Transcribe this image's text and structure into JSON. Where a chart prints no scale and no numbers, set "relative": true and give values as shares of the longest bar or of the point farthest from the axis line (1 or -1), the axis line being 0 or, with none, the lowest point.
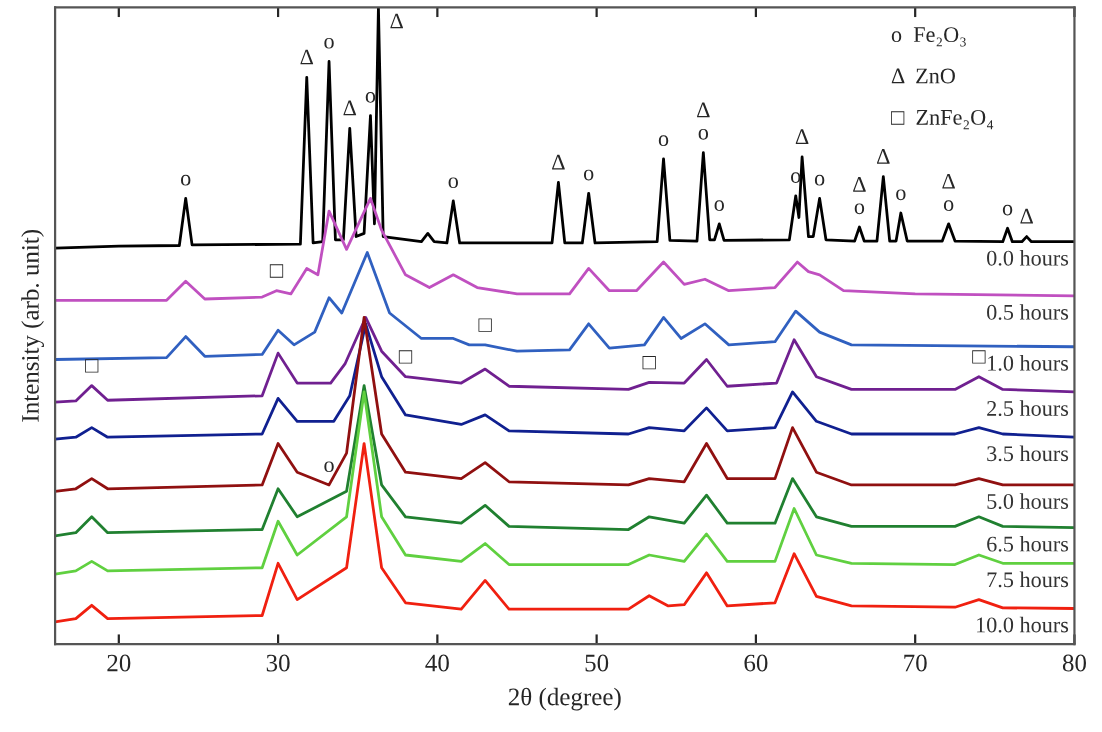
{
  "chart_data": {
    "type": "line",
    "relative": true,
    "xlabel": "2θ (degree)",
    "ylabel": "Intensity (arb. unit)",
    "xlim": [
      16,
      80
    ],
    "xticks": [
      20,
      30,
      40,
      50,
      60,
      70,
      80
    ],
    "tick_labels": "x",
    "grid": false,
    "legend": false,
    "marker": "none",
    "line_style": "solid",
    "series": [
      {
        "name": "0.0 hours",
        "color": "#000000",
        "x": [
          16,
          20,
          23.8,
          24.2,
          24.6,
          31.4,
          31.8,
          32.2,
          32.8,
          33.2,
          33.6,
          34.1,
          34.5,
          34.9,
          35.4,
          35.8,
          36.05,
          36.3,
          36.6,
          39.0,
          39.4,
          39.8,
          40.6,
          41.0,
          41.4,
          47.2,
          47.6,
          48.0,
          49.1,
          49.5,
          49.9,
          53.8,
          54.2,
          54.6,
          56.3,
          56.7,
          57.1,
          57.4,
          57.7,
          58.0,
          62.1,
          62.5,
          62.7,
          62.9,
          63.3,
          63.6,
          64.0,
          64.4,
          66.2,
          66.5,
          66.8,
          67.6,
          68.0,
          68.4,
          68.8,
          69.1,
          69.5,
          71.7,
          72.1,
          72.5,
          75.5,
          75.8,
          76.1,
          76.7,
          77.0,
          77.3,
          80
        ],
        "values": [
          0.622,
          0.625,
          0.626,
          0.7,
          0.627,
          0.628,
          0.89,
          0.63,
          0.632,
          0.915,
          0.635,
          0.635,
          0.81,
          0.64,
          0.645,
          0.83,
          0.66,
          1.0,
          0.64,
          0.632,
          0.645,
          0.632,
          0.63,
          0.696,
          0.63,
          0.63,
          0.725,
          0.63,
          0.63,
          0.708,
          0.63,
          0.632,
          0.762,
          0.634,
          0.633,
          0.772,
          0.635,
          0.635,
          0.66,
          0.634,
          0.635,
          0.704,
          0.67,
          0.765,
          0.64,
          0.64,
          0.7,
          0.635,
          0.633,
          0.655,
          0.633,
          0.633,
          0.734,
          0.633,
          0.633,
          0.677,
          0.633,
          0.633,
          0.66,
          0.633,
          0.632,
          0.653,
          0.632,
          0.632,
          0.64,
          0.632,
          0.632
        ]
      },
      {
        "name": "0.5 hours",
        "color": "#c050c0",
        "x": [
          16,
          23,
          24.2,
          25.4,
          29,
          29.9,
          30.8,
          31.8,
          32.5,
          33.2,
          34.3,
          35.8,
          36.5,
          38,
          39.5,
          41.0,
          42.5,
          45,
          48.3,
          49.5,
          50.8,
          52.5,
          54.2,
          55.5,
          56.8,
          58.3,
          61.2,
          62.6,
          63.3,
          64.0,
          65.5,
          70,
          80
        ],
        "values": [
          0.54,
          0.54,
          0.57,
          0.542,
          0.545,
          0.555,
          0.55,
          0.59,
          0.58,
          0.68,
          0.62,
          0.7,
          0.65,
          0.58,
          0.56,
          0.58,
          0.56,
          0.55,
          0.55,
          0.59,
          0.555,
          0.555,
          0.6,
          0.565,
          0.573,
          0.555,
          0.56,
          0.6,
          0.585,
          0.58,
          0.555,
          0.55,
          0.547
        ]
      },
      {
        "name": "1.0 hours",
        "color": "#3060c0",
        "x": [
          16,
          23,
          24.2,
          25.4,
          29,
          30.0,
          31,
          32.3,
          33.2,
          34,
          35.6,
          37,
          39,
          41.0,
          42,
          43,
          45,
          48.3,
          49.5,
          50.8,
          53,
          54.2,
          55.3,
          56.8,
          58.3,
          61.2,
          62.5,
          64,
          66,
          80
        ],
        "values": [
          0.447,
          0.45,
          0.483,
          0.452,
          0.455,
          0.493,
          0.47,
          0.49,
          0.544,
          0.52,
          0.615,
          0.52,
          0.48,
          0.48,
          0.47,
          0.47,
          0.46,
          0.462,
          0.503,
          0.465,
          0.47,
          0.513,
          0.48,
          0.503,
          0.47,
          0.475,
          0.523,
          0.49,
          0.47,
          0.467
        ]
      },
      {
        "name": "2.5 hours",
        "color": "#702090",
        "x": [
          16,
          17.3,
          18.3,
          19.3,
          29,
          30.0,
          31.2,
          33.3,
          34.2,
          35.5,
          36.5,
          38,
          41.5,
          43.0,
          44.5,
          52,
          53.3,
          55.5,
          56.9,
          58.2,
          61.3,
          62.4,
          63.8,
          66,
          72.5,
          74,
          75.5,
          80
        ],
        "values": [
          0.38,
          0.382,
          0.406,
          0.383,
          0.39,
          0.457,
          0.41,
          0.41,
          0.44,
          0.513,
          0.46,
          0.42,
          0.41,
          0.432,
          0.405,
          0.4,
          0.411,
          0.41,
          0.447,
          0.405,
          0.41,
          0.478,
          0.42,
          0.4,
          0.4,
          0.42,
          0.4,
          0.396
        ]
      },
      {
        "name": "3.5 hours",
        "color": "#102090",
        "x": [
          16,
          17.3,
          18.3,
          19.3,
          29,
          30.0,
          31.2,
          33.5,
          34.5,
          35.5,
          36.5,
          38,
          41.5,
          43.0,
          44.5,
          52,
          53.3,
          55.5,
          56.9,
          58.2,
          61.2,
          62.3,
          63.8,
          66,
          72.5,
          74,
          75.5,
          80
        ],
        "values": [
          0.322,
          0.325,
          0.34,
          0.325,
          0.33,
          0.386,
          0.35,
          0.35,
          0.39,
          0.503,
          0.42,
          0.36,
          0.345,
          0.36,
          0.335,
          0.33,
          0.34,
          0.335,
          0.371,
          0.335,
          0.34,
          0.396,
          0.35,
          0.33,
          0.33,
          0.34,
          0.33,
          0.325
        ]
      },
      {
        "name": "5.0 hours",
        "color": "#901010",
        "x": [
          16,
          17.3,
          18.3,
          19.3,
          29,
          30.0,
          31.2,
          33.2,
          34.3,
          35.4,
          36.5,
          38,
          41.5,
          43.0,
          44.5,
          52,
          53.3,
          55.5,
          56.9,
          58.2,
          61.2,
          62.3,
          63.8,
          66,
          72.5,
          74,
          75.5,
          80
        ],
        "values": [
          0.24,
          0.244,
          0.26,
          0.244,
          0.25,
          0.315,
          0.27,
          0.25,
          0.3,
          0.513,
          0.33,
          0.27,
          0.26,
          0.285,
          0.255,
          0.25,
          0.26,
          0.255,
          0.315,
          0.26,
          0.26,
          0.34,
          0.27,
          0.25,
          0.25,
          0.26,
          0.25,
          0.25
        ]
      },
      {
        "name": "6.5 hours",
        "color": "#208030",
        "x": [
          16,
          17.3,
          18.3,
          19.3,
          29,
          30.0,
          31.2,
          34.3,
          35.4,
          36.5,
          38,
          41.5,
          43.0,
          44.5,
          52,
          53.3,
          55.5,
          56.9,
          58.2,
          61.2,
          62.3,
          63.8,
          66,
          72.5,
          74,
          75.5,
          80
        ],
        "values": [
          0.17,
          0.175,
          0.2,
          0.175,
          0.18,
          0.244,
          0.2,
          0.24,
          0.406,
          0.25,
          0.2,
          0.19,
          0.218,
          0.185,
          0.18,
          0.2,
          0.19,
          0.234,
          0.19,
          0.19,
          0.26,
          0.2,
          0.185,
          0.185,
          0.2,
          0.185,
          0.183
        ]
      },
      {
        "name": "7.5 hours",
        "color": "#60d040",
        "x": [
          16,
          17.3,
          18.3,
          19.3,
          29,
          30.0,
          31.2,
          34.3,
          35.4,
          36.5,
          38,
          41.5,
          43.0,
          44.5,
          52,
          53.3,
          55.5,
          56.9,
          58.2,
          61.2,
          62.4,
          63.8,
          66,
          72.5,
          74,
          75.5,
          80
        ],
        "values": [
          0.11,
          0.115,
          0.13,
          0.115,
          0.12,
          0.193,
          0.14,
          0.2,
          0.396,
          0.2,
          0.14,
          0.13,
          0.158,
          0.125,
          0.125,
          0.14,
          0.13,
          0.173,
          0.13,
          0.13,
          0.213,
          0.14,
          0.127,
          0.125,
          0.14,
          0.127,
          0.127
        ]
      },
      {
        "name": "10.0 hours",
        "color": "#f02010",
        "x": [
          16,
          17.3,
          18.3,
          19.3,
          29,
          30.0,
          31.2,
          34.3,
          35.4,
          36.5,
          38,
          41.5,
          43.0,
          44.5,
          52,
          53.3,
          54.5,
          55.5,
          56.9,
          58.2,
          61.2,
          62.4,
          63.8,
          66,
          72.5,
          74,
          75.5,
          80
        ],
        "values": [
          0.035,
          0.04,
          0.061,
          0.04,
          0.045,
          0.127,
          0.07,
          0.12,
          0.315,
          0.12,
          0.065,
          0.055,
          0.1,
          0.055,
          0.055,
          0.076,
          0.06,
          0.062,
          0.112,
          0.06,
          0.065,
          0.142,
          0.075,
          0.06,
          0.058,
          0.07,
          0.057,
          0.056
        ]
      }
    ],
    "annotations": [
      {
        "text": "o",
        "x": 24.2,
        "y": 0.7
      },
      {
        "text": "Δ",
        "x": 31.8,
        "y": 0.89
      },
      {
        "text": "o",
        "x": 33.2,
        "y": 0.915
      },
      {
        "text": "Δ",
        "x": 34.5,
        "y": 0.81
      },
      {
        "text": "o",
        "x": 35.8,
        "y": 0.83
      },
      {
        "text": "Δ",
        "x": 36.3,
        "y": 1.0
      },
      {
        "text": "o",
        "x": 41.0,
        "y": 0.696
      },
      {
        "text": "□",
        "x": 29.9,
        "y": 0.555
      },
      {
        "text": "□",
        "x": 43,
        "y": 0.47
      },
      {
        "text": "□",
        "x": 38,
        "y": 0.42
      },
      {
        "text": "□",
        "x": 18.3,
        "y": 0.406
      },
      {
        "text": "o",
        "x": 33.2,
        "y": 0.25
      },
      {
        "text": "Δ",
        "x": 47.6,
        "y": 0.725
      },
      {
        "text": "o",
        "x": 49.5,
        "y": 0.708
      },
      {
        "text": "o",
        "x": 54.2,
        "y": 0.762
      },
      {
        "text": "o",
        "x": 56.7,
        "y": 0.772
      },
      {
        "text": "Δ",
        "x": 56.7,
        "y": 0.772
      },
      {
        "text": "o",
        "x": 57.7,
        "y": 0.66
      },
      {
        "text": "Δ",
        "x": 62.9,
        "y": 0.765
      },
      {
        "text": "o",
        "x": 62.5,
        "y": 0.704
      },
      {
        "text": "o",
        "x": 64.0,
        "y": 0.7
      },
      {
        "text": "o",
        "x": 66.5,
        "y": 0.655
      },
      {
        "text": "Δ",
        "x": 66.5,
        "y": 0.655
      },
      {
        "text": "Δ",
        "x": 68.0,
        "y": 0.734
      },
      {
        "text": "o",
        "x": 69.1,
        "y": 0.677
      },
      {
        "text": "o",
        "x": 72.1,
        "y": 0.66
      },
      {
        "text": "Δ",
        "x": 72.1,
        "y": 0.66
      },
      {
        "text": "o",
        "x": 75.8,
        "y": 0.653
      },
      {
        "text": "Δ",
        "x": 77.0,
        "y": 0.64
      },
      {
        "text": "□",
        "x": 53.3,
        "y": 0.411
      },
      {
        "text": "□",
        "x": 74,
        "y": 0.42
      },
      "o  Fe₂O₃",
      "Δ  ZnO",
      "□  ZnFe₂O₄"
    ]
  }
}
